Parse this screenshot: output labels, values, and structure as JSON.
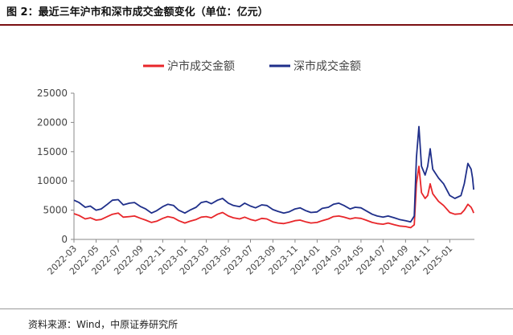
{
  "figure": {
    "title": "图 2：最近三年沪市和深市成交金额变化（单位：亿元）",
    "source": "资料来源：Wind，中原证券研究所"
  },
  "chart_data": {
    "type": "line",
    "title": "",
    "xlabel": "",
    "ylabel": "",
    "ylim": [
      0,
      25000
    ],
    "yticks": [
      0,
      5000,
      10000,
      15000,
      20000,
      25000
    ],
    "xticks": [
      "2022-03",
      "2022-05",
      "2022-07",
      "2022-09",
      "2022-11",
      "2023-01",
      "2023-03",
      "2023-05",
      "2023-07",
      "2023-09",
      "2023-11",
      "2024-01",
      "2024-03",
      "2024-05",
      "2024-07",
      "2024-09",
      "2024-11",
      "2025-01"
    ],
    "grid": false,
    "legend_position": "top-center",
    "series": [
      {
        "name": "沪市成交金额",
        "color": "#e8262a",
        "points": [
          [
            "2022-03-01",
            4400
          ],
          [
            "2022-03-15",
            4100
          ],
          [
            "2022-04-01",
            3500
          ],
          [
            "2022-04-15",
            3700
          ],
          [
            "2022-05-01",
            3300
          ],
          [
            "2022-05-15",
            3400
          ],
          [
            "2022-06-01",
            3900
          ],
          [
            "2022-06-15",
            4300
          ],
          [
            "2022-07-01",
            4500
          ],
          [
            "2022-07-15",
            3800
          ],
          [
            "2022-08-01",
            3900
          ],
          [
            "2022-08-15",
            4000
          ],
          [
            "2022-09-01",
            3600
          ],
          [
            "2022-09-15",
            3300
          ],
          [
            "2022-10-01",
            2900
          ],
          [
            "2022-10-15",
            3100
          ],
          [
            "2022-11-01",
            3600
          ],
          [
            "2022-11-15",
            3900
          ],
          [
            "2022-12-01",
            3700
          ],
          [
            "2022-12-15",
            3200
          ],
          [
            "2023-01-01",
            2800
          ],
          [
            "2023-01-15",
            3100
          ],
          [
            "2023-02-01",
            3400
          ],
          [
            "2023-02-15",
            3800
          ],
          [
            "2023-03-01",
            3900
          ],
          [
            "2023-03-15",
            3700
          ],
          [
            "2023-04-01",
            4300
          ],
          [
            "2023-04-15",
            4600
          ],
          [
            "2023-05-01",
            4000
          ],
          [
            "2023-05-15",
            3700
          ],
          [
            "2023-06-01",
            3500
          ],
          [
            "2023-06-15",
            3800
          ],
          [
            "2023-07-01",
            3400
          ],
          [
            "2023-07-15",
            3200
          ],
          [
            "2023-08-01",
            3600
          ],
          [
            "2023-08-15",
            3500
          ],
          [
            "2023-09-01",
            3000
          ],
          [
            "2023-09-15",
            2800
          ],
          [
            "2023-10-01",
            2700
          ],
          [
            "2023-10-15",
            2900
          ],
          [
            "2023-11-01",
            3200
          ],
          [
            "2023-11-15",
            3300
          ],
          [
            "2023-12-01",
            3000
          ],
          [
            "2023-12-15",
            2800
          ],
          [
            "2024-01-01",
            2900
          ],
          [
            "2024-01-15",
            3200
          ],
          [
            "2024-02-01",
            3500
          ],
          [
            "2024-02-15",
            3900
          ],
          [
            "2024-03-01",
            4000
          ],
          [
            "2024-03-15",
            3800
          ],
          [
            "2024-04-01",
            3500
          ],
          [
            "2024-04-15",
            3700
          ],
          [
            "2024-05-01",
            3600
          ],
          [
            "2024-05-15",
            3300
          ],
          [
            "2024-06-01",
            2900
          ],
          [
            "2024-06-15",
            2700
          ],
          [
            "2024-07-01",
            2600
          ],
          [
            "2024-07-15",
            2800
          ],
          [
            "2024-08-01",
            2500
          ],
          [
            "2024-08-15",
            2300
          ],
          [
            "2024-09-01",
            2200
          ],
          [
            "2024-09-15",
            2000
          ],
          [
            "2024-09-25",
            2500
          ],
          [
            "2024-10-01",
            9500
          ],
          [
            "2024-10-08",
            12500
          ],
          [
            "2024-10-15",
            8000
          ],
          [
            "2024-10-25",
            7000
          ],
          [
            "2024-11-01",
            7500
          ],
          [
            "2024-11-08",
            9500
          ],
          [
            "2024-11-15",
            7800
          ],
          [
            "2024-12-01",
            6500
          ],
          [
            "2024-12-15",
            5800
          ],
          [
            "2025-01-01",
            4600
          ],
          [
            "2025-01-15",
            4300
          ],
          [
            "2025-02-01",
            4400
          ],
          [
            "2025-02-10",
            5000
          ],
          [
            "2025-02-20",
            6000
          ],
          [
            "2025-03-01",
            5500
          ],
          [
            "2025-03-05",
            5000
          ],
          [
            "2025-03-08",
            4500
          ]
        ]
      },
      {
        "name": "深市成交金额",
        "color": "#1f2f8a",
        "points": [
          [
            "2022-03-01",
            6700
          ],
          [
            "2022-03-15",
            6300
          ],
          [
            "2022-04-01",
            5500
          ],
          [
            "2022-04-15",
            5700
          ],
          [
            "2022-05-01",
            5000
          ],
          [
            "2022-05-15",
            5200
          ],
          [
            "2022-06-01",
            6000
          ],
          [
            "2022-06-15",
            6700
          ],
          [
            "2022-07-01",
            6800
          ],
          [
            "2022-07-15",
            5900
          ],
          [
            "2022-08-01",
            6200
          ],
          [
            "2022-08-15",
            6300
          ],
          [
            "2022-09-01",
            5600
          ],
          [
            "2022-09-15",
            5200
          ],
          [
            "2022-10-01",
            4500
          ],
          [
            "2022-10-15",
            4900
          ],
          [
            "2022-11-01",
            5600
          ],
          [
            "2022-11-15",
            6000
          ],
          [
            "2022-12-01",
            5800
          ],
          [
            "2022-12-15",
            5000
          ],
          [
            "2023-01-01",
            4500
          ],
          [
            "2023-01-15",
            5000
          ],
          [
            "2023-02-01",
            5500
          ],
          [
            "2023-02-15",
            6300
          ],
          [
            "2023-03-01",
            6500
          ],
          [
            "2023-03-15",
            6100
          ],
          [
            "2023-04-01",
            6700
          ],
          [
            "2023-04-15",
            7000
          ],
          [
            "2023-05-01",
            6200
          ],
          [
            "2023-05-15",
            5800
          ],
          [
            "2023-06-01",
            5600
          ],
          [
            "2023-06-15",
            6200
          ],
          [
            "2023-07-01",
            5700
          ],
          [
            "2023-07-15",
            5400
          ],
          [
            "2023-08-01",
            5900
          ],
          [
            "2023-08-15",
            5800
          ],
          [
            "2023-09-01",
            5100
          ],
          [
            "2023-09-15",
            4800
          ],
          [
            "2023-10-01",
            4500
          ],
          [
            "2023-10-15",
            4700
          ],
          [
            "2023-11-01",
            5200
          ],
          [
            "2023-11-15",
            5400
          ],
          [
            "2023-12-01",
            4900
          ],
          [
            "2023-12-15",
            4600
          ],
          [
            "2024-01-01",
            4700
          ],
          [
            "2024-01-15",
            5300
          ],
          [
            "2024-02-01",
            5500
          ],
          [
            "2024-02-15",
            6000
          ],
          [
            "2024-03-01",
            6200
          ],
          [
            "2024-03-15",
            5800
          ],
          [
            "2024-04-01",
            5200
          ],
          [
            "2024-04-15",
            5500
          ],
          [
            "2024-05-01",
            5400
          ],
          [
            "2024-05-15",
            4900
          ],
          [
            "2024-06-01",
            4300
          ],
          [
            "2024-06-15",
            4000
          ],
          [
            "2024-07-01",
            3800
          ],
          [
            "2024-07-15",
            4000
          ],
          [
            "2024-08-01",
            3700
          ],
          [
            "2024-08-15",
            3400
          ],
          [
            "2024-09-01",
            3200
          ],
          [
            "2024-09-15",
            3000
          ],
          [
            "2024-09-25",
            4000
          ],
          [
            "2024-10-01",
            14000
          ],
          [
            "2024-10-08",
            19300
          ],
          [
            "2024-10-15",
            12500
          ],
          [
            "2024-10-25",
            11000
          ],
          [
            "2024-11-01",
            12500
          ],
          [
            "2024-11-08",
            15500
          ],
          [
            "2024-11-15",
            12000
          ],
          [
            "2024-12-01",
            10500
          ],
          [
            "2024-12-15",
            9500
          ],
          [
            "2025-01-01",
            7500
          ],
          [
            "2025-01-15",
            7000
          ],
          [
            "2025-02-01",
            7500
          ],
          [
            "2025-02-10",
            9500
          ],
          [
            "2025-02-20",
            13000
          ],
          [
            "2025-03-01",
            12000
          ],
          [
            "2025-03-05",
            10500
          ],
          [
            "2025-03-08",
            8500
          ]
        ]
      }
    ]
  }
}
